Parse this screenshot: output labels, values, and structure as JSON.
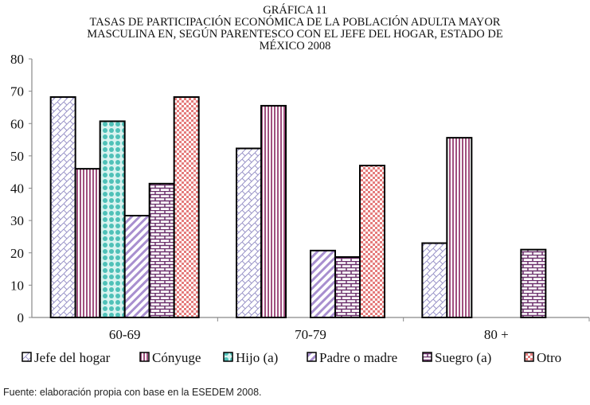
{
  "chart_data": {
    "type": "bar",
    "title_lines": [
      "GRÁFICA 11",
      "TASAS DE PARTICIPACIÓN ECONÓMICA DE LA POBLACIÓN ADULTA MAYOR",
      "MASCULINA EN, SEGÚN PARENTESCO CON EL JEFE DEL HOGAR, ESTADO DE",
      "MÉXICO 2008"
    ],
    "categories": [
      "60-69",
      "70-79",
      "80 +"
    ],
    "ylim": [
      0,
      80
    ],
    "yticks": [
      0,
      10,
      20,
      30,
      40,
      50,
      60,
      70,
      80
    ],
    "xlabel": "",
    "ylabel": "",
    "legend_position": "bottom",
    "series": [
      {
        "name": "Jefe del hogar",
        "values": [
          68.2,
          52.3,
          23.0
        ],
        "color": "#9a94c8"
      },
      {
        "name": "Cónyuge",
        "values": [
          46.0,
          65.5,
          55.6
        ],
        "color": "#a0507f"
      },
      {
        "name": "Hijo (a)",
        "values": [
          60.7,
          null,
          null
        ],
        "color": "#4fc1b8"
      },
      {
        "name": "Padre o madre",
        "values": [
          31.5,
          20.7,
          null
        ],
        "color": "#a88fcf"
      },
      {
        "name": "Suegro (a)",
        "values": [
          41.4,
          18.7,
          21.0
        ],
        "color": "#6b2f6b"
      },
      {
        "name": "Otro",
        "values": [
          68.2,
          47.0,
          null
        ],
        "color": "#e57c7c"
      }
    ]
  },
  "source": "Fuente: elaboración propia con base en la ESEDEM 2008."
}
